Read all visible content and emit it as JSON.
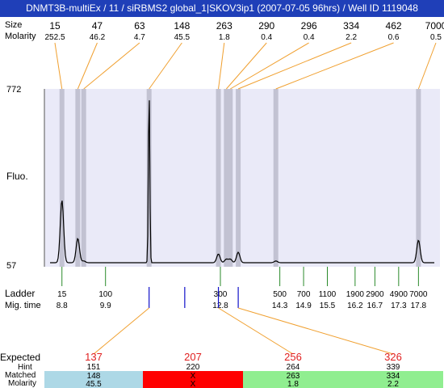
{
  "header": {
    "title": "DNMT3B-multiEx / 11 / siRBMS2 global_1|SKOV3ip1 (2007-07-05 96hrs) / Well ID 1119048"
  },
  "labels": {
    "size_row": "Size",
    "molarity_row": "Molarity",
    "y_axis": "Fluo.",
    "ladder_row": "Ladder",
    "mig_time_row": "Mig. time",
    "expected_row": "Expected",
    "hint_row": "Hint",
    "matched_row": "Matched",
    "molarity_bottom_row": "Molarity"
  },
  "chart_data": {
    "type": "line",
    "ylim": [
      57,
      772
    ],
    "xlim": [
      8.5,
      18.2
    ],
    "yticks": [
      "772",
      "57"
    ],
    "peaks": [
      {
        "size": "15",
        "molarity": "252.5",
        "time": 8.8,
        "height": 0.36
      },
      {
        "size": "47",
        "molarity": "46.2",
        "time": 9.2,
        "height": 0.14
      },
      {
        "size": "63",
        "molarity": "4.7",
        "time": 9.35,
        "height": 0.01
      },
      {
        "size": "148",
        "molarity": "45.5",
        "time": 11.0,
        "height": 1.0
      },
      {
        "size": "263",
        "molarity": "1.8",
        "time": 12.75,
        "height": 0.05
      },
      {
        "size": "290",
        "molarity": "0.4",
        "time": 12.95,
        "height": 0.02
      },
      {
        "size": "296",
        "molarity": "0.4",
        "time": 13.05,
        "height": 0.02
      },
      {
        "size": "334",
        "molarity": "2.2",
        "time": 13.25,
        "height": 0.06
      },
      {
        "size": "462",
        "molarity": "0.6",
        "time": 14.2,
        "height": 0.01
      },
      {
        "size": "7000",
        "molarity": "0.5",
        "time": 17.8,
        "height": 0.13
      }
    ],
    "ladder": [
      {
        "size": "15",
        "time": "8.8",
        "t": 8.8
      },
      {
        "size": "100",
        "time": "9.9",
        "t": 9.9
      },
      {
        "size": "300",
        "time": "12.8",
        "t": 12.8
      },
      {
        "size": "500",
        "time": "14.3",
        "t": 14.3
      },
      {
        "size": "700",
        "time": "14.9",
        "t": 14.9
      },
      {
        "size": "1100",
        "time": "15.5",
        "t": 15.5
      },
      {
        "size": "1900",
        "time": "16.2",
        "t": 16.2
      },
      {
        "size": "2900",
        "time": "16.7",
        "t": 16.7
      },
      {
        "size": "4900",
        "time": "17.3",
        "t": 17.3
      },
      {
        "size": "7000",
        "time": "17.8",
        "t": 17.8
      }
    ],
    "expected": [
      {
        "expected": "137",
        "hint": "151",
        "matched": "148",
        "molarity": "45.5",
        "status": "ok",
        "hint_time": 11.0,
        "matched_time": 11.0
      },
      {
        "expected": "207",
        "hint": "220",
        "matched": "X",
        "molarity": "X",
        "status": "missing",
        "hint_time": 11.9,
        "matched_time": null
      },
      {
        "expected": "256",
        "hint": "264",
        "matched": "263",
        "molarity": "1.8",
        "status": "ok",
        "hint_time": 12.75,
        "matched_time": 12.75
      },
      {
        "expected": "326",
        "hint": "339",
        "matched": "334",
        "molarity": "2.2",
        "status": "ok",
        "hint_time": 13.25,
        "matched_time": 13.25
      }
    ]
  },
  "colors": {
    "title_bg": "#1f3fb8",
    "plot_bg": "#eaeaf8",
    "peak_band": "#c2c2d2",
    "ladder_tick": "#2a8a2a",
    "hint_tick": "#1010c8",
    "leader_line": "#f0a030",
    "expected_mismatch": "#e02020",
    "cell_ok_first": "#add8e6",
    "cell_missing": "#ff0000",
    "cell_ok": "#90ee90"
  }
}
